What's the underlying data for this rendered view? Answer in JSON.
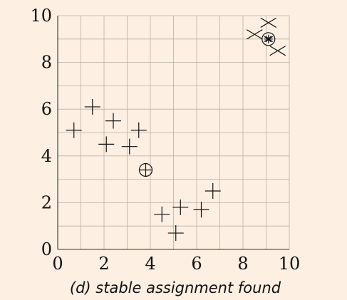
{
  "chart_data": {
    "type": "scatter",
    "caption": "(d) stable assignment found",
    "xlim": [
      0,
      10
    ],
    "ylim": [
      0,
      10
    ],
    "x_ticks": [
      0,
      2,
      4,
      6,
      8,
      10
    ],
    "y_ticks": [
      0,
      2,
      4,
      6,
      8,
      10
    ],
    "grid": true,
    "series": [
      {
        "marker": "plus",
        "points": [
          {
            "x": 0.7,
            "y": 5.1
          },
          {
            "x": 1.5,
            "y": 6.1
          },
          {
            "x": 2.4,
            "y": 5.5
          },
          {
            "x": 3.5,
            "y": 5.1
          },
          {
            "x": 2.1,
            "y": 4.5
          },
          {
            "x": 3.1,
            "y": 4.4
          },
          {
            "x": 4.5,
            "y": 1.5
          },
          {
            "x": 5.3,
            "y": 1.8
          },
          {
            "x": 6.2,
            "y": 1.7
          },
          {
            "x": 6.7,
            "y": 2.5
          },
          {
            "x": 5.1,
            "y": 0.7
          }
        ]
      },
      {
        "marker": "cross",
        "points": [
          {
            "x": 8.5,
            "y": 9.2
          },
          {
            "x": 9.1,
            "y": 9.7
          },
          {
            "x": 9.5,
            "y": 8.5
          }
        ]
      },
      {
        "marker": "circled-plus",
        "points": [
          {
            "x": 3.8,
            "y": 3.4
          }
        ]
      },
      {
        "marker": "circled-asterisk",
        "points": [
          {
            "x": 9.1,
            "y": 9.0
          }
        ]
      }
    ],
    "colors": {
      "background": "#fdf0e2",
      "grid": "#b8b0a8",
      "axis": "#333333",
      "marker": "#111111"
    }
  }
}
